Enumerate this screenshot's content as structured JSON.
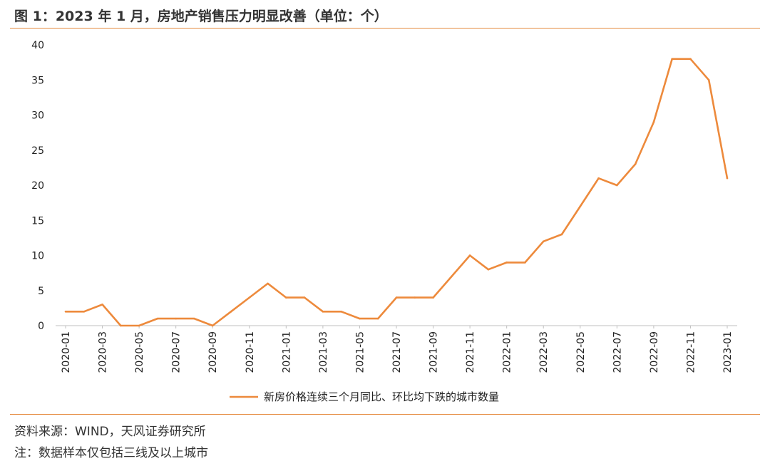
{
  "header": {
    "title": "图 1：2023 年 1 月，房地产销售压力明显改善（单位：个）"
  },
  "footer": {
    "source": "资料来源：WIND，天风证券研究所",
    "note": "注：数据样本仅包括三线及以上城市"
  },
  "chart_data": {
    "type": "line",
    "title": "图 1：2023 年 1 月，房地产销售压力明显改善（单位：个）",
    "xlabel": "",
    "ylabel": "",
    "ylim": [
      0,
      40
    ],
    "yticks": [
      0,
      5,
      10,
      15,
      20,
      25,
      30,
      35,
      40
    ],
    "grid": false,
    "legend_position": "bottom",
    "x": [
      "2020-01",
      "2020-02",
      "2020-03",
      "2020-04",
      "2020-05",
      "2020-06",
      "2020-07",
      "2020-08",
      "2020-09",
      "2020-10",
      "2020-11",
      "2020-12",
      "2021-01",
      "2021-02",
      "2021-03",
      "2021-04",
      "2021-05",
      "2021-06",
      "2021-07",
      "2021-08",
      "2021-09",
      "2021-10",
      "2021-11",
      "2021-12",
      "2022-01",
      "2022-02",
      "2022-03",
      "2022-04",
      "2022-05",
      "2022-06",
      "2022-07",
      "2022-08",
      "2022-09",
      "2022-10",
      "2022-11",
      "2022-12",
      "2023-01"
    ],
    "xtick_labels": [
      "2020-01",
      "2020-03",
      "2020-05",
      "2020-07",
      "2020-09",
      "2020-11",
      "2021-01",
      "2021-03",
      "2021-05",
      "2021-07",
      "2021-09",
      "2021-11",
      "2022-01",
      "2022-03",
      "2022-05",
      "2022-07",
      "2022-09",
      "2022-11",
      "2023-01"
    ],
    "series": [
      {
        "name": "新房价格连续三个月同比、环比均下跌的城市数量",
        "color": "#ED8A3C",
        "values": [
          2,
          2,
          3,
          0,
          0,
          1,
          1,
          1,
          0,
          2,
          4,
          6,
          4,
          4,
          2,
          2,
          1,
          1,
          4,
          4,
          4,
          7,
          10,
          8,
          9,
          9,
          12,
          13,
          17,
          21,
          20,
          23,
          29,
          38,
          38,
          35,
          21
        ]
      }
    ]
  }
}
